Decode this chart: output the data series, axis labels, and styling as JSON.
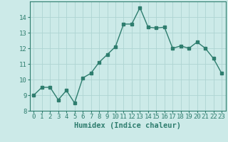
{
  "x": [
    0,
    1,
    2,
    3,
    4,
    5,
    6,
    7,
    8,
    9,
    10,
    11,
    12,
    13,
    14,
    15,
    16,
    17,
    18,
    19,
    20,
    21,
    22,
    23
  ],
  "y": [
    9.0,
    9.5,
    9.5,
    8.7,
    9.3,
    8.5,
    10.1,
    10.4,
    11.1,
    11.6,
    12.1,
    13.55,
    13.55,
    14.6,
    13.35,
    13.3,
    13.35,
    12.0,
    12.15,
    12.0,
    12.4,
    12.0,
    11.35,
    10.4
  ],
  "line_color": "#2e7d6e",
  "bg_color": "#cceae8",
  "grid_color": "#aed4d2",
  "xlabel": "Humidex (Indice chaleur)",
  "xlim": [
    -0.5,
    23.5
  ],
  "ylim": [
    8,
    15
  ],
  "yticks": [
    8,
    9,
    10,
    11,
    12,
    13,
    14
  ],
  "xticks": [
    0,
    1,
    2,
    3,
    4,
    5,
    6,
    7,
    8,
    9,
    10,
    11,
    12,
    13,
    14,
    15,
    16,
    17,
    18,
    19,
    20,
    21,
    22,
    23
  ],
  "marker": "s",
  "markersize": 2.5,
  "linewidth": 1.0,
  "xlabel_fontsize": 7.5,
  "tick_fontsize": 6.5
}
